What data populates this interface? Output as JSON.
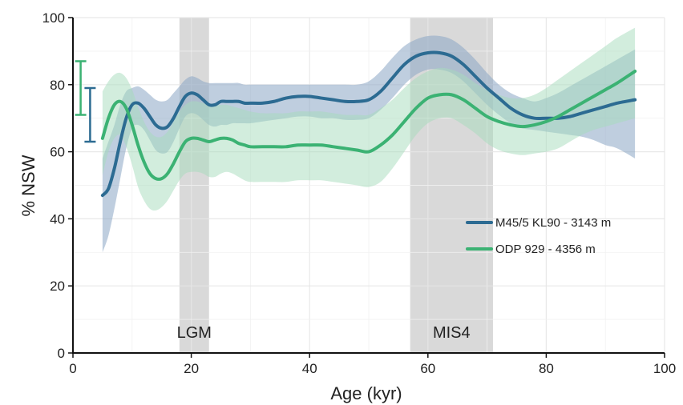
{
  "chart_data": {
    "type": "line",
    "xlabel": "Age (kyr)",
    "ylabel": "% NSW",
    "xlim": [
      0,
      100
    ],
    "ylim": [
      0,
      100
    ],
    "xticks": [
      0,
      20,
      40,
      60,
      80,
      100
    ],
    "yticks": [
      0,
      20,
      40,
      60,
      80,
      100
    ],
    "grid": true,
    "legend_position": "right",
    "shaded_regions": [
      {
        "label": "LGM",
        "x_start": 18,
        "x_end": 23,
        "color": "#d9d9d9"
      },
      {
        "label": "MIS4",
        "x_start": 57,
        "x_end": 71,
        "color": "#d9d9d9"
      }
    ],
    "error_bars": [
      {
        "x": 1.3,
        "low": 71,
        "high": 87,
        "color": "#3bb273"
      },
      {
        "x": 2.9,
        "low": 63,
        "high": 79,
        "color": "#2c6b92"
      }
    ],
    "series": [
      {
        "name": "M45/5 KL90 - 3143 m",
        "color": "#2c6b92",
        "band_color": "#8aa6c4",
        "x": [
          5,
          6,
          7,
          8,
          9,
          10,
          11,
          12,
          13,
          14,
          15,
          16,
          17,
          18,
          19,
          20,
          21,
          22,
          23,
          24,
          25,
          26,
          27,
          28,
          29,
          30,
          32,
          34,
          36,
          38,
          40,
          42,
          44,
          46,
          48,
          50,
          52,
          54,
          56,
          58,
          60,
          62,
          64,
          66,
          68,
          70,
          72,
          74,
          76,
          78,
          80,
          82,
          84,
          86,
          88,
          90,
          92,
          95
        ],
        "y": [
          47,
          49,
          55,
          63,
          70,
          74,
          74.5,
          73,
          70.5,
          68,
          67,
          67.5,
          70,
          73.5,
          76.5,
          77.5,
          77,
          75.5,
          74,
          74,
          75,
          75,
          75,
          75,
          74.5,
          74.5,
          74.5,
          75,
          76,
          76.5,
          76.5,
          76,
          75.5,
          75,
          75,
          75.5,
          78,
          82,
          86,
          88.5,
          89.5,
          89.5,
          88.5,
          86,
          82.5,
          79,
          76,
          73,
          71,
          70,
          70,
          70,
          70.5,
          71.5,
          72.5,
          73.5,
          74.5,
          75.5
        ],
        "upper": [
          58,
          63,
          68,
          74,
          78,
          79,
          79.5,
          78.5,
          77,
          75.5,
          75,
          75.5,
          77.5,
          79.5,
          81.5,
          82.5,
          82,
          81,
          80.5,
          80.5,
          80.5,
          80.5,
          80.5,
          80.5,
          80,
          80,
          80,
          80,
          80,
          80,
          80,
          80,
          80,
          80,
          80,
          81,
          84,
          88,
          91.5,
          93.5,
          94.5,
          94.5,
          93.5,
          91,
          87.5,
          83.5,
          80,
          77.5,
          76,
          75,
          76,
          77.5,
          79.5,
          81.5,
          83.5,
          85.5,
          87.5,
          90.5
        ],
        "lower": [
          30,
          35,
          43,
          52,
          61,
          67,
          68,
          66.5,
          63.5,
          60.5,
          59.5,
          60,
          63,
          67,
          70.5,
          71.5,
          71,
          69.5,
          68,
          67.5,
          68,
          68,
          68.5,
          68.5,
          68.5,
          68.5,
          69,
          69.5,
          70,
          70.5,
          70.5,
          70,
          70,
          69.5,
          69.5,
          70,
          72.5,
          76,
          80,
          83,
          84.5,
          84.5,
          83.5,
          81,
          77.5,
          74,
          71,
          68.5,
          67,
          66.5,
          66,
          65.5,
          65,
          64.5,
          63.5,
          62,
          61,
          58
        ]
      },
      {
        "name": "ODP 929 - 4356 m",
        "color": "#3bb273",
        "band_color": "#a6dcbc",
        "x": [
          5,
          6,
          7,
          8,
          9,
          10,
          11,
          12,
          13,
          14,
          15,
          16,
          17,
          18,
          19,
          20,
          21,
          22,
          23,
          24,
          25,
          26,
          27,
          28,
          29,
          30,
          32,
          34,
          36,
          38,
          40,
          42,
          44,
          46,
          48,
          50,
          52,
          54,
          56,
          58,
          60,
          62,
          64,
          66,
          68,
          70,
          72,
          74,
          76,
          78,
          80,
          82,
          84,
          86,
          88,
          90,
          92,
          95
        ],
        "y": [
          64,
          70,
          74,
          75,
          73,
          68,
          62,
          57,
          53.5,
          52,
          52,
          53.5,
          56.5,
          60,
          63,
          64,
          64,
          63.5,
          63,
          63.5,
          64,
          64,
          63.5,
          62.5,
          62,
          61.5,
          61.5,
          61.5,
          61.5,
          62,
          62,
          62,
          61.5,
          61,
          60.5,
          60,
          62,
          65,
          69,
          73,
          76,
          77,
          77,
          75.5,
          73,
          70.5,
          69,
          68,
          67.5,
          68,
          69,
          70.5,
          72.5,
          74.5,
          76.5,
          78.5,
          80.5,
          84
        ],
        "upper": [
          78,
          81,
          83,
          83.5,
          82,
          78.5,
          73.5,
          69,
          66,
          64.5,
          64.5,
          66,
          69,
          72,
          74,
          75,
          75,
          74.5,
          74,
          74,
          74,
          74,
          73.5,
          73,
          72.5,
          72,
          71.5,
          71.5,
          71.5,
          72,
          72,
          72,
          71.5,
          71,
          71,
          71,
          73,
          75.5,
          79,
          82,
          84,
          85,
          84.5,
          83,
          80.5,
          78.5,
          77,
          76,
          76,
          77,
          79,
          81.5,
          84,
          86.5,
          89,
          91.5,
          94,
          97
        ],
        "lower": [
          53,
          60,
          64,
          65,
          61.5,
          56,
          49.5,
          45.5,
          43,
          42.5,
          43.5,
          45.5,
          48.5,
          51.5,
          53.5,
          54,
          54,
          53.5,
          52.5,
          52.5,
          53.5,
          54,
          53.5,
          52.5,
          51.5,
          51,
          51,
          51,
          51,
          51.5,
          51.5,
          51.5,
          51,
          50.5,
          50,
          49.5,
          51,
          55,
          60,
          65,
          68.5,
          70,
          70,
          68,
          65.5,
          62.5,
          60.5,
          59.5,
          59,
          59.5,
          60,
          61,
          63,
          65,
          66.5,
          67.5,
          68.5,
          70
        ]
      }
    ]
  }
}
